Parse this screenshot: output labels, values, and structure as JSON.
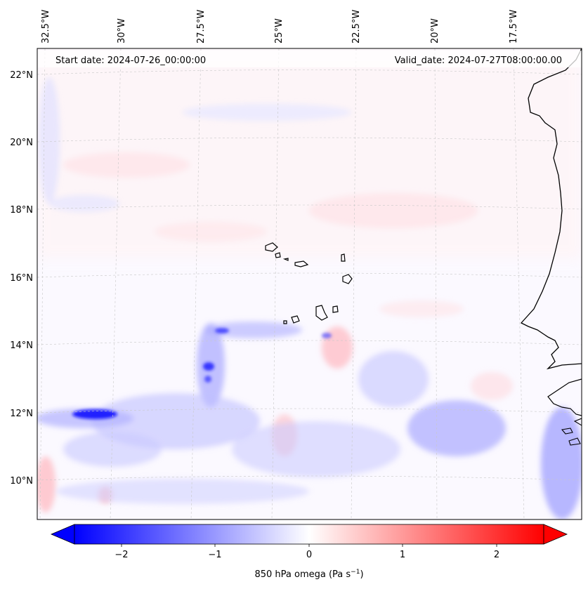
{
  "header": {
    "start_date": "Start date: 2024-07-26_00:00:00",
    "valid_date": "Valid_date: 2024-07-27T08:00:00.00"
  },
  "lon_labels": [
    "32.5°W",
    "30°W",
    "27.5°W",
    "25°W",
    "22.5°W",
    "20°W",
    "17.5°W"
  ],
  "lat_labels": [
    "22°N",
    "20°N",
    "18°N",
    "16°N",
    "14°N",
    "12°N",
    "10°N"
  ],
  "colorbar": {
    "ticks": [
      "−2",
      "−1",
      "0",
      "1",
      "2"
    ],
    "label": "850 hPa omega (Pa s",
    "label_exp": "−1",
    "label_close": ")",
    "vmin": -2.5,
    "vmax": 2.5,
    "low_color": "#0000ff",
    "mid_color": "#ffffff",
    "high_color": "#ff0000"
  }
}
